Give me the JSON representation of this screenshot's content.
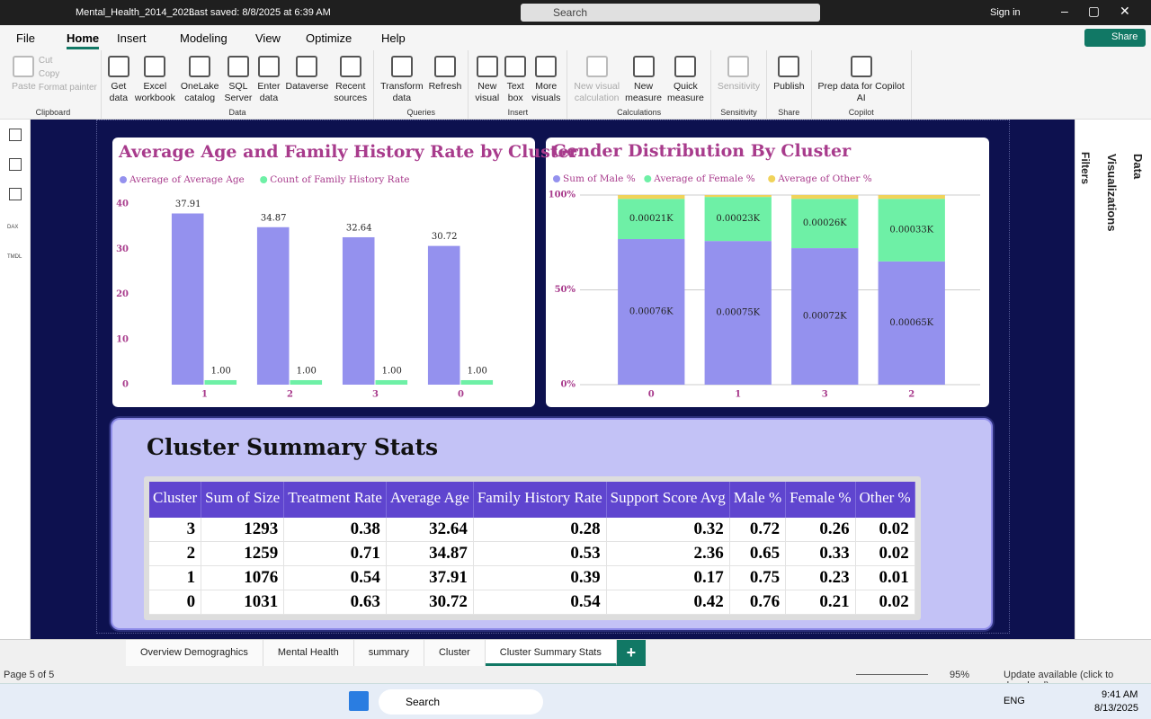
{
  "window": {
    "file_name": "Mental_Health_2014_2023",
    "last_saved": "Last saved: 8/8/2025 at 6:39 AM",
    "search": "Search",
    "sign_in": "Sign in"
  },
  "menu": {
    "tabs": [
      "File",
      "Home",
      "Insert",
      "Modeling",
      "View",
      "Optimize",
      "Help"
    ],
    "active": 1,
    "share": "Share"
  },
  "ribbon": {
    "groups": [
      {
        "label": "Clipboard",
        "buttons": [
          {
            "label": "Paste",
            "enabled": false
          },
          {
            "label": "Cut",
            "enabled": false
          },
          {
            "label": "Copy",
            "enabled": false
          },
          {
            "label": "Format painter",
            "enabled": false
          }
        ]
      },
      {
        "label": "Data",
        "buttons": [
          {
            "label": "Get\ndata",
            "enabled": true
          },
          {
            "label": "Excel\nworkbook",
            "enabled": true
          },
          {
            "label": "OneLake\ncatalog",
            "enabled": true
          },
          {
            "label": "SQL\nServer",
            "enabled": true
          },
          {
            "label": "Enter\ndata",
            "enabled": true
          },
          {
            "label": "Dataverse",
            "enabled": true
          },
          {
            "label": "Recent\nsources",
            "enabled": true
          }
        ]
      },
      {
        "label": "Queries",
        "buttons": [
          {
            "label": "Transform\ndata",
            "enabled": true
          },
          {
            "label": "Refresh",
            "enabled": true
          }
        ]
      },
      {
        "label": "Insert",
        "buttons": [
          {
            "label": "New\nvisual",
            "enabled": true
          },
          {
            "label": "Text\nbox",
            "enabled": true
          },
          {
            "label": "More\nvisuals",
            "enabled": true
          }
        ]
      },
      {
        "label": "Calculations",
        "buttons": [
          {
            "label": "New visual\ncalculation",
            "enabled": false
          },
          {
            "label": "New\nmeasure",
            "enabled": true
          },
          {
            "label": "Quick\nmeasure",
            "enabled": true
          }
        ]
      },
      {
        "label": "Sensitivity",
        "buttons": [
          {
            "label": "Sensitivity",
            "enabled": false
          }
        ]
      },
      {
        "label": "Share",
        "buttons": [
          {
            "label": "Publish",
            "enabled": true
          }
        ]
      },
      {
        "label": "Copilot",
        "buttons": [
          {
            "label": "Prep data for Copilot\nAI",
            "enabled": true
          }
        ]
      }
    ]
  },
  "left_rail": [
    "DAX",
    "TMDL"
  ],
  "panes": [
    "Filters",
    "Visualizations",
    "Data"
  ],
  "chart_data": [
    {
      "type": "bar",
      "title": "Average Age and Family History Rate by Cluster",
      "categories": [
        "1",
        "2",
        "3",
        "0"
      ],
      "series": [
        {
          "name": "Average of Average Age",
          "color": "#9491ee",
          "values": [
            37.91,
            34.87,
            32.64,
            30.72
          ]
        },
        {
          "name": "Count of Family History Rate",
          "color": "#6ef0a6",
          "values": [
            1,
            1,
            1,
            1
          ],
          "value_labels": [
            "1.00",
            "1.00",
            "1.00",
            "1.00"
          ]
        }
      ],
      "ylim": [
        0,
        40
      ],
      "yticks": [
        0,
        10,
        20,
        30,
        40
      ],
      "grid": false
    },
    {
      "type": "bar",
      "stacked": "percent",
      "title": "Gender Distribution By Cluster",
      "categories": [
        "0",
        "1",
        "3",
        "2"
      ],
      "series": [
        {
          "name": "Sum of Male %",
          "color": "#9491ee",
          "values": [
            0.76,
            0.75,
            0.72,
            0.65
          ],
          "value_labels": [
            "0.00076K",
            "0.00075K",
            "0.00072K",
            "0.00065K"
          ]
        },
        {
          "name": "Average of Female %",
          "color": "#6ef0a6",
          "values": [
            0.21,
            0.23,
            0.26,
            0.33
          ],
          "value_labels": [
            "0.00021K",
            "0.00023K",
            "0.00026K",
            "0.00033K"
          ]
        },
        {
          "name": "Average of Other %",
          "color": "#f0d35a",
          "values": [
            0.02,
            0.01,
            0.02,
            0.02
          ]
        }
      ],
      "ylim": [
        0,
        100
      ],
      "yticks": [
        {
          "value": 0,
          "label": "0%"
        },
        {
          "value": 50,
          "label": "50%"
        },
        {
          "value": 100,
          "label": "100%"
        }
      ],
      "grid": true
    }
  ],
  "summary": {
    "title": "Cluster Summary Stats",
    "table": {
      "columns": [
        "Cluster",
        "Sum of Size",
        "Treatment Rate",
        "Average Age",
        "Family History Rate",
        "Support Score Avg",
        "Male %",
        "Female %",
        "Other %"
      ],
      "rows": [
        [
          3,
          1293,
          0.38,
          32.64,
          0.28,
          0.32,
          0.72,
          0.26,
          0.02
        ],
        [
          2,
          1259,
          0.71,
          34.87,
          0.53,
          2.36,
          0.65,
          0.33,
          0.02
        ],
        [
          1,
          1076,
          0.54,
          37.91,
          0.39,
          0.17,
          0.75,
          0.23,
          0.01
        ],
        [
          0,
          1031,
          0.63,
          30.72,
          0.54,
          0.42,
          0.76,
          0.21,
          0.02
        ]
      ]
    }
  },
  "page_tabs": {
    "tabs": [
      "Overview Demograghics",
      "Mental Health",
      "summary",
      "Cluster",
      "Cluster Summary Stats"
    ],
    "active": 4
  },
  "status": {
    "page": "Page 5 of 5",
    "zoom": "95%",
    "update": "Update available (click to download)"
  },
  "taskbar": {
    "search": "Search",
    "language": "ENG",
    "time": "9:41 AM",
    "date": "8/13/2025"
  }
}
